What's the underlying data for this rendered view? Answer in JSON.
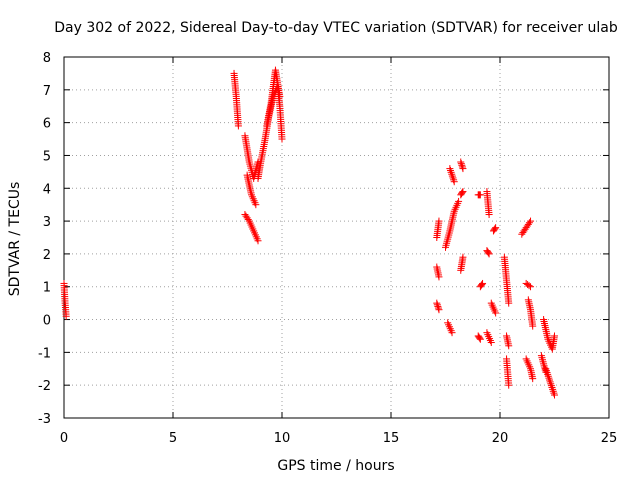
{
  "chart_data": {
    "type": "scatter",
    "title": "Day 302 of 2022, Sidereal Day-to-day VTEC variation (SDTVAR) for receiver ulab",
    "xlabel": "GPS time / hours",
    "ylabel": "SDTVAR / TECUs",
    "xlim": [
      0,
      25
    ],
    "ylim": [
      -3,
      8
    ],
    "xticks": [
      0,
      5,
      10,
      15,
      20,
      25
    ],
    "yticks": [
      -3,
      -2,
      -1,
      0,
      1,
      2,
      3,
      4,
      5,
      6,
      7,
      8
    ],
    "grid": true,
    "marker": "+",
    "color": "#ff0000",
    "segments": [
      {
        "x": [
          0.0,
          0.05,
          0.1
        ],
        "y": [
          1.1,
          0.5,
          0.1
        ]
      },
      {
        "x": [
          7.8,
          7.9,
          8.0
        ],
        "y": [
          7.5,
          6.8,
          5.9
        ]
      },
      {
        "x": [
          8.3,
          8.5,
          8.7,
          8.9
        ],
        "y": [
          5.6,
          4.8,
          4.3,
          4.8
        ]
      },
      {
        "x": [
          8.3,
          8.5,
          8.7,
          8.9
        ],
        "y": [
          3.2,
          3.0,
          2.7,
          2.4
        ]
      },
      {
        "x": [
          8.4,
          8.6,
          8.8
        ],
        "y": [
          4.4,
          3.8,
          3.5
        ]
      },
      {
        "x": [
          8.9,
          9.0,
          9.2,
          9.4,
          9.6,
          9.8,
          9.9,
          10.0
        ],
        "y": [
          4.3,
          4.7,
          5.4,
          6.2,
          6.8,
          7.1,
          6.5,
          5.5
        ]
      },
      {
        "x": [
          9.3,
          9.5,
          9.7,
          9.9
        ],
        "y": [
          5.9,
          6.6,
          7.6,
          6.8
        ]
      },
      {
        "x": [
          17.1,
          17.2
        ],
        "y": [
          2.5,
          3.0
        ]
      },
      {
        "x": [
          17.1,
          17.2
        ],
        "y": [
          1.6,
          1.3
        ]
      },
      {
        "x": [
          17.1,
          17.2
        ],
        "y": [
          0.5,
          0.3
        ]
      },
      {
        "x": [
          17.5,
          17.7,
          17.9,
          18.1
        ],
        "y": [
          2.2,
          2.7,
          3.3,
          3.6
        ]
      },
      {
        "x": [
          17.7,
          17.9
        ],
        "y": [
          4.6,
          4.2
        ]
      },
      {
        "x": [
          18.2,
          18.3
        ],
        "y": [
          4.8,
          4.6
        ]
      },
      {
        "x": [
          18.2,
          18.3
        ],
        "y": [
          1.5,
          1.9
        ]
      },
      {
        "x": [
          17.6,
          17.8
        ],
        "y": [
          -0.1,
          -0.4
        ]
      },
      {
        "x": [
          18.2,
          18.3
        ],
        "y": [
          3.8,
          3.9
        ]
      },
      {
        "x": [
          19.0,
          19.1
        ],
        "y": [
          3.8,
          3.8
        ]
      },
      {
        "x": [
          19.0,
          19.1
        ],
        "y": [
          -0.5,
          -0.6
        ]
      },
      {
        "x": [
          19.1,
          19.2
        ],
        "y": [
          1.0,
          1.1
        ]
      },
      {
        "x": [
          19.4,
          19.5
        ],
        "y": [
          3.9,
          3.2
        ]
      },
      {
        "x": [
          19.4,
          19.5
        ],
        "y": [
          2.1,
          2.0
        ]
      },
      {
        "x": [
          19.4,
          19.6
        ],
        "y": [
          -0.4,
          -0.7
        ]
      },
      {
        "x": [
          19.7,
          19.8
        ],
        "y": [
          2.7,
          2.8
        ]
      },
      {
        "x": [
          19.6,
          19.8
        ],
        "y": [
          0.5,
          0.2
        ]
      },
      {
        "x": [
          20.2,
          20.3,
          20.4
        ],
        "y": [
          1.9,
          1.2,
          0.5
        ]
      },
      {
        "x": [
          20.3,
          20.4
        ],
        "y": [
          -1.2,
          -2.0
        ]
      },
      {
        "x": [
          21.0,
          21.2,
          21.4
        ],
        "y": [
          2.6,
          2.8,
          3.0
        ]
      },
      {
        "x": [
          21.2,
          21.4
        ],
        "y": [
          1.1,
          1.0
        ]
      },
      {
        "x": [
          21.3,
          21.4,
          21.5
        ],
        "y": [
          0.6,
          0.3,
          -0.2
        ]
      },
      {
        "x": [
          21.2,
          21.4,
          21.5
        ],
        "y": [
          -1.2,
          -1.5,
          -1.8
        ]
      },
      {
        "x": [
          22.0,
          22.2,
          22.4,
          22.5
        ],
        "y": [
          0.0,
          -0.6,
          -0.9,
          -0.5
        ]
      },
      {
        "x": [
          22.1,
          22.3,
          22.5
        ],
        "y": [
          -1.5,
          -1.9,
          -2.3
        ]
      },
      {
        "x": [
          21.9,
          22.1
        ],
        "y": [
          -1.1,
          -1.6
        ]
      },
      {
        "x": [
          20.3,
          20.4
        ],
        "y": [
          -0.5,
          -0.8
        ]
      }
    ]
  }
}
